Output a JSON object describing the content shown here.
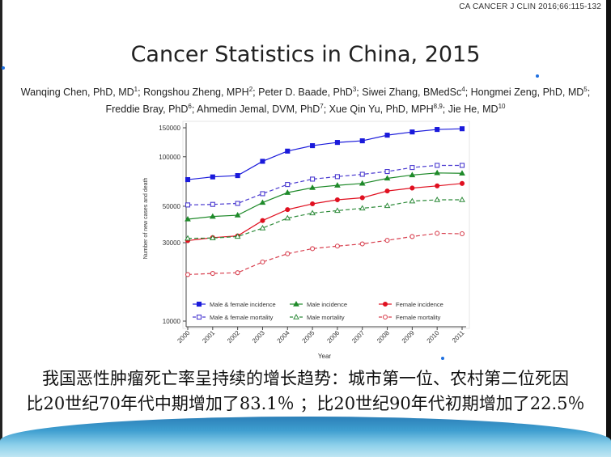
{
  "citation": "CA CANCER J CLIN 2016;66:115-132",
  "title": "Cancer Statistics in China, 2015",
  "authors": {
    "line1": [
      {
        "name": "Wanqing Chen, PhD, MD",
        "sup": "1"
      },
      {
        "name": "Rongshou Zheng, MPH",
        "sup": "2"
      },
      {
        "name": "Peter D. Baade, PhD",
        "sup": "3"
      },
      {
        "name": "Siwei Zhang, BMedSc",
        "sup": "4"
      },
      {
        "name": "Hongmei Zeng, PhD, MD",
        "sup": "5"
      }
    ],
    "line2": [
      {
        "name": "Freddie Bray, PhD",
        "sup": "6"
      },
      {
        "name": "Ahmedin Jemal, DVM, PhD",
        "sup": "7"
      },
      {
        "name": "Xue Qin Yu, PhD, MPH",
        "sup": "8,9"
      },
      {
        "name": "Jie He, MD",
        "sup": "10"
      }
    ]
  },
  "caption": {
    "line1": "我国恶性肿瘤死亡率呈持续的增长趋势：城市第一位、农村第二位死因",
    "line2": "比20世纪70年代中期增加了83.1％ ；比20世纪90年代初期增加了22.5％"
  },
  "chart_data": {
    "type": "line",
    "xlabel": "Year",
    "ylabel": "Number of new cases and death",
    "yscale": "log",
    "ylim": [
      10000,
      150000
    ],
    "yticks": [
      10000,
      30000,
      50000,
      100000,
      150000
    ],
    "x": [
      2000,
      2001,
      2002,
      2003,
      2004,
      2005,
      2006,
      2007,
      2008,
      2009,
      2010,
      2011
    ],
    "grid": false,
    "legend_placement": "bottom-inside",
    "series": [
      {
        "name": "Male & female incidence",
        "color": "#1a1adb",
        "style": "solid",
        "marker": "filled-square",
        "values": [
          72600,
          75400,
          76800,
          93800,
          108200,
          116800,
          122200,
          125000,
          135300,
          141500,
          146500,
          148000
        ]
      },
      {
        "name": "Male incidence",
        "color": "#1f8a2a",
        "style": "solid",
        "marker": "filled-triangle",
        "values": [
          41700,
          43300,
          44100,
          52600,
          60500,
          64800,
          67000,
          68800,
          73900,
          77400,
          79700,
          79300
        ]
      },
      {
        "name": "Female incidence",
        "color": "#e01020",
        "style": "solid",
        "marker": "filled-circle",
        "values": [
          30900,
          32200,
          33000,
          40900,
          47700,
          51700,
          54700,
          56300,
          61900,
          64500,
          66500,
          68800
        ]
      },
      {
        "name": "Male & female mortality",
        "color": "#4a3ad0",
        "style": "dashed",
        "marker": "hollow-square",
        "values": [
          50900,
          51300,
          52000,
          59600,
          67800,
          73100,
          75700,
          78200,
          81300,
          86000,
          88600,
          88600
        ]
      },
      {
        "name": "Male mortality",
        "color": "#2e8b3a",
        "style": "dashed",
        "marker": "hollow-triangle",
        "values": [
          31900,
          32000,
          32700,
          36800,
          42300,
          45400,
          47000,
          48600,
          50300,
          53700,
          54700,
          54700
        ]
      },
      {
        "name": "Female mortality",
        "color": "#d8404f",
        "style": "dashed",
        "marker": "hollow-circle",
        "values": [
          19200,
          19500,
          19700,
          22900,
          25700,
          27600,
          28600,
          29500,
          31000,
          32700,
          34200,
          34000
        ]
      }
    ]
  }
}
